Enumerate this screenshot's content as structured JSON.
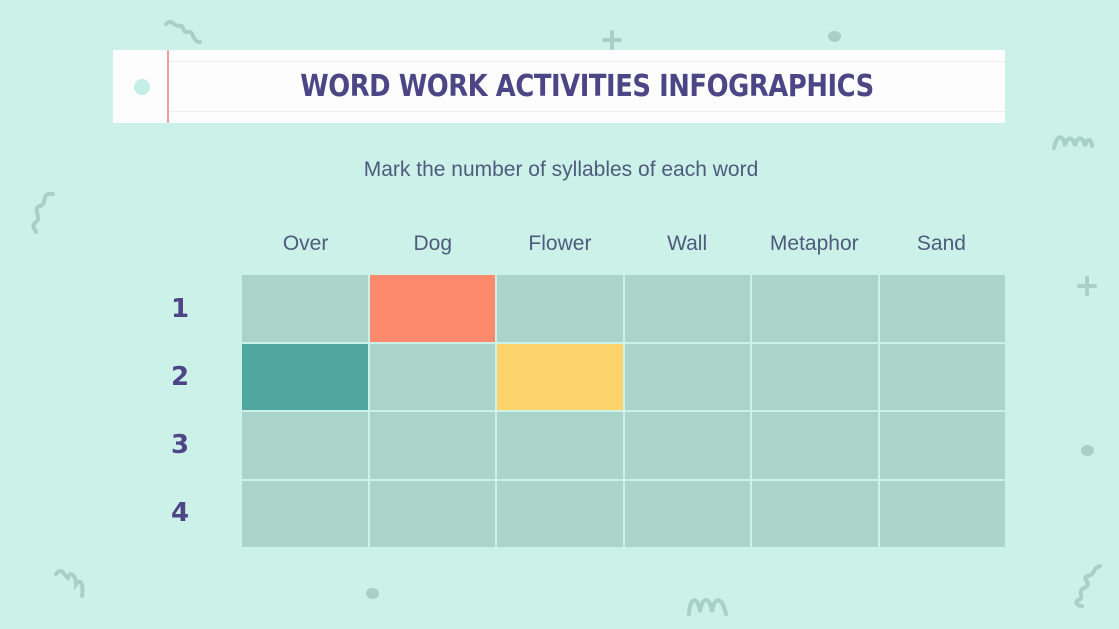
{
  "title": "WORD WORK ACTIVITIES INFOGRAPHICS",
  "subtitle": "Mark the number of syllables of each word",
  "columns": [
    "Over",
    "Dog",
    "Flower",
    "Wall",
    "Metaphor",
    "Sand"
  ],
  "rows": [
    "1",
    "2",
    "3",
    "4"
  ],
  "colors": {
    "background": "#cbf1e8",
    "cell_empty": "#aad4ca",
    "mark_coral": "#fd8a6c",
    "mark_teal": "#50a7a0",
    "mark_yellow": "#fdd46c",
    "title_text": "#4d4585",
    "body_text": "#4f5b7d"
  },
  "marked_cells": [
    {
      "row": "1",
      "column": "Dog",
      "color": "#fd8a6c"
    },
    {
      "row": "2",
      "column": "Over",
      "color": "#50a7a0"
    },
    {
      "row": "2",
      "column": "Flower",
      "color": "#fdd46c"
    }
  ]
}
